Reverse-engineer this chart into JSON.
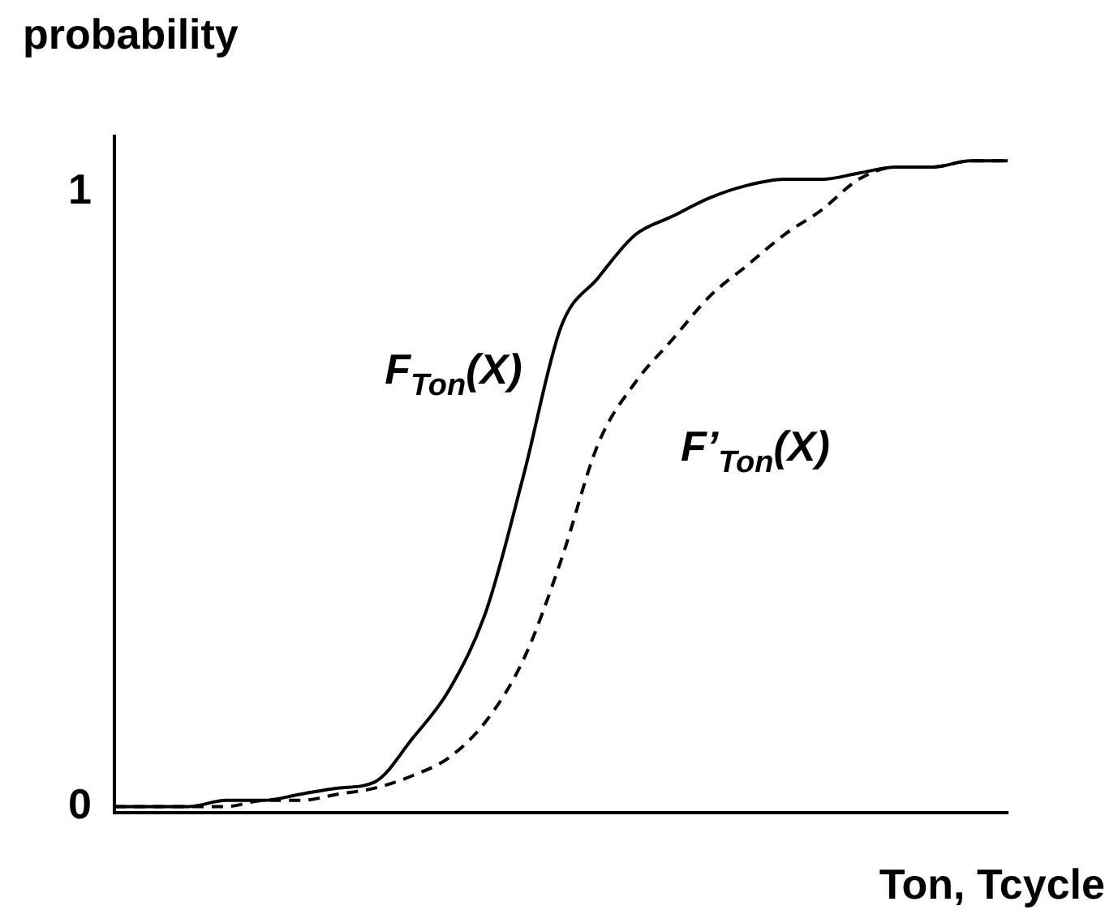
{
  "chart_data": {
    "type": "line",
    "ylabel": "probability",
    "xlabel": "Ton, Tcycle",
    "categories": [
      null,
      null,
      null,
      null,
      null,
      null,
      null,
      null,
      null,
      null,
      null,
      null,
      null,
      null,
      null,
      null,
      null,
      null,
      null,
      null,
      null,
      null,
      null,
      null,
      null
    ],
    "series": [
      {
        "name": "F$_{Ton}$(X)",
        "color": "#000000",
        "line_style": "solid",
        "values": [
          0,
          0.0,
          0.0,
          0.01,
          0.01,
          0.02,
          0.03,
          0.04,
          0.11,
          0.19,
          0.32,
          0.54,
          0.78,
          0.86,
          0.93,
          0.96,
          0.99,
          1.01,
          1.02,
          1.02,
          1.03,
          1.04,
          1.04,
          1.05,
          1.05
        ]
      },
      {
        "name": "F’$_{Ton}$(X)",
        "color": "#000000",
        "line_style": "dashed",
        "values": [
          0,
          0.0,
          0.0,
          0.0,
          0.01,
          0.01,
          0.02,
          0.03,
          0.05,
          0.08,
          0.14,
          0.24,
          0.4,
          0.59,
          0.69,
          0.76,
          0.83,
          0.88,
          0.93,
          0.97,
          1.02,
          1.04,
          1.04,
          1.05,
          1.05
        ]
      }
    ],
    "ylim": [
      -0.01,
      1.09
    ],
    "yticks": [
      0,
      1
    ],
    "tick_labels": "y",
    "grid": false,
    "legend": false,
    "marker": "none"
  }
}
